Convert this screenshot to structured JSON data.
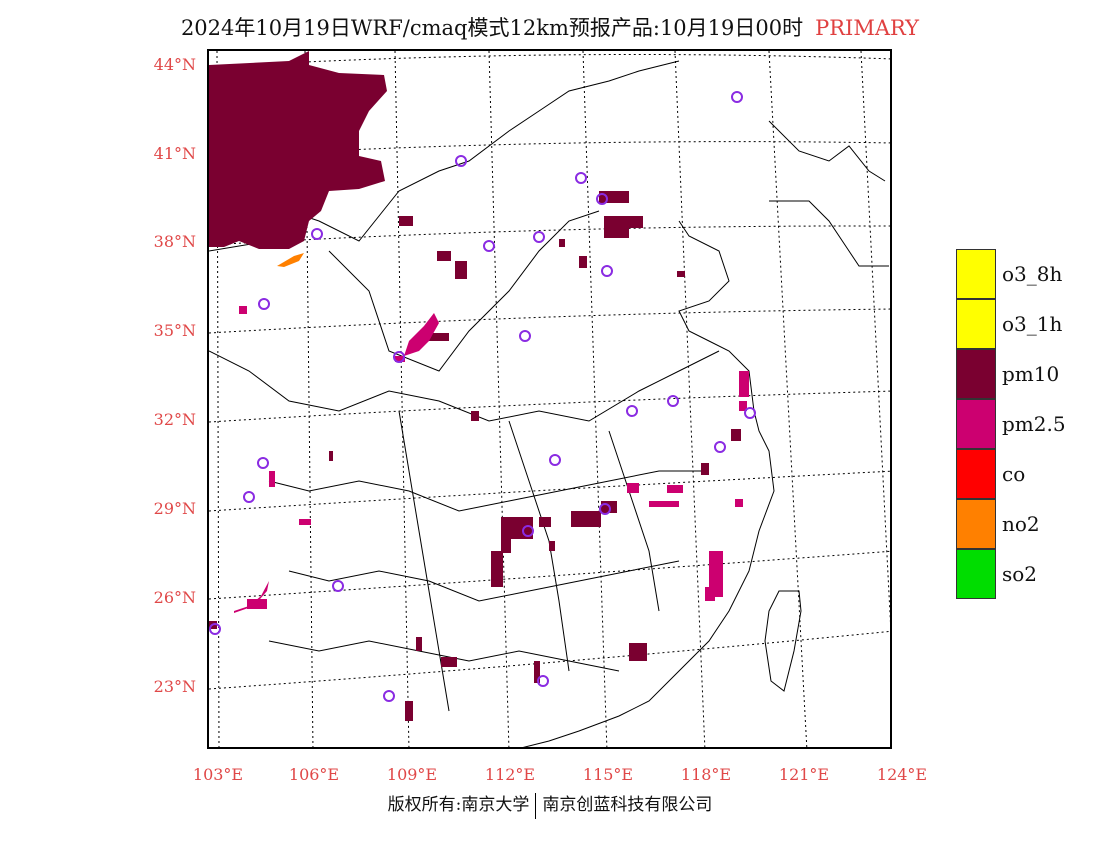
{
  "title": {
    "main": "2024年10月19日WRF/cmaq模式12km预报产品:10月19日00时",
    "tag": "PRIMARY",
    "tag_color": "#e04040"
  },
  "map": {
    "lat_labels": [
      "44°N",
      "41°N",
      "38°N",
      "35°N",
      "32°N",
      "29°N",
      "26°N",
      "23°N"
    ],
    "lon_labels": [
      "103°E",
      "106°E",
      "109°E",
      "112°E",
      "115°E",
      "118°E",
      "121°E",
      "124°E"
    ],
    "label_color": "#e04848",
    "pollutant_colors": {
      "pm10": "#7a0030",
      "pm25": "#cc0070",
      "no2": "#ff8000"
    },
    "station_marker": "circle-marker",
    "station_color": "#8a2be2"
  },
  "legend": {
    "items": [
      {
        "label": "o3_8h",
        "color": "#ffff00"
      },
      {
        "label": "o3_1h",
        "color": "#ffff00"
      },
      {
        "label": "pm10",
        "color": "#7a0030"
      },
      {
        "label": "pm2.5",
        "color": "#cc0070"
      },
      {
        "label": "co",
        "color": "#ff0000"
      },
      {
        "label": "no2",
        "color": "#ff8000"
      },
      {
        "label": "so2",
        "color": "#00dd00"
      }
    ]
  },
  "footer": {
    "left": "版权所有:南京大学",
    "right": "南京创蓝科技有限公司"
  }
}
